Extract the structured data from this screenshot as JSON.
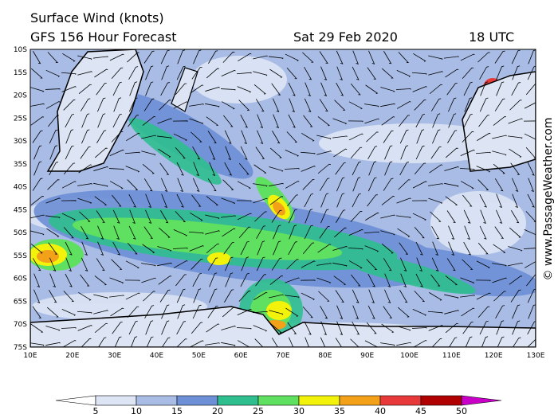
{
  "header": {
    "title": "Surface Wind (knots)",
    "subtitle": "GFS 156 Hour Forecast",
    "date": "Sat 29 Feb 2020",
    "time": "18 UTC"
  },
  "axes": {
    "lat_labels": [
      "10S",
      "15S",
      "20S",
      "25S",
      "30S",
      "35S",
      "40S",
      "45S",
      "50S",
      "55S",
      "60S",
      "65S",
      "70S",
      "75S"
    ],
    "lon_labels": [
      "10E",
      "20E",
      "30E",
      "40E",
      "50E",
      "60E",
      "70E",
      "80E",
      "90E",
      "100E",
      "110E",
      "120E",
      "130E"
    ]
  },
  "legend": {
    "ticks": [
      5,
      10,
      15,
      20,
      25,
      30,
      35,
      40,
      45,
      50
    ],
    "colors": [
      "#ffffff",
      "#dde5f5",
      "#a8bce6",
      "#6d8fd6",
      "#2fbf8f",
      "#60e060",
      "#f2f20a",
      "#f4a11a",
      "#e8393a",
      "#b00000",
      "#c800c8"
    ]
  },
  "watermark": "© www.PassageWeather.com"
}
